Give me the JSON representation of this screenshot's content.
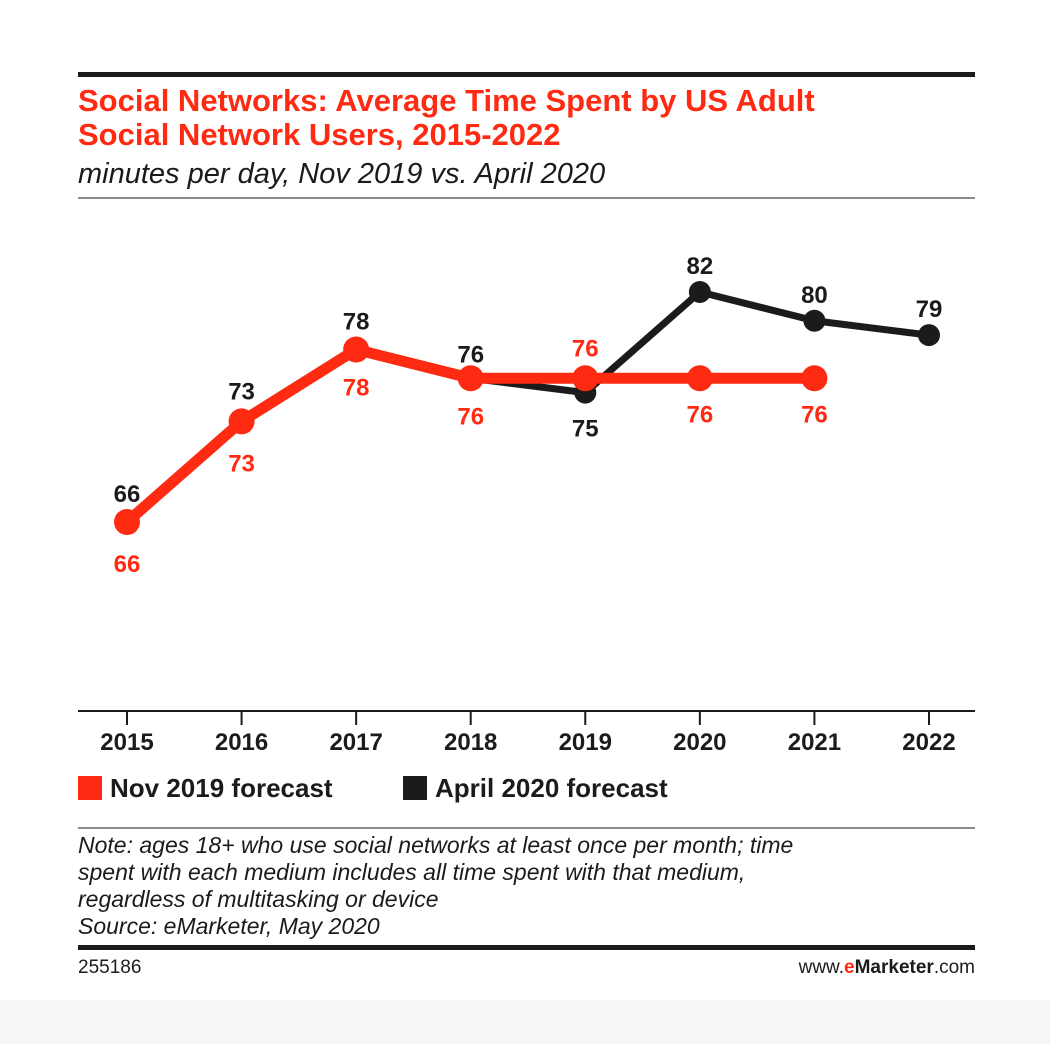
{
  "header": {
    "title_line1": "Social Networks: Average Time Spent by US Adult",
    "title_line2": "Social Network Users, 2015-2022",
    "subtitle": "minutes per day, Nov 2019 vs. April 2020"
  },
  "colors": {
    "accent": "#ff2a12",
    "dark": "#1b1b1b"
  },
  "chart_data": {
    "type": "line",
    "title": "Social Networks: Average Time Spent by US Adult Social Network Users, 2015-2022",
    "subtitle": "minutes per day, Nov 2019 vs. April 2020",
    "x": [
      "2015",
      "2016",
      "2017",
      "2018",
      "2019",
      "2020",
      "2021",
      "2022"
    ],
    "ylim": [
      55,
      85
    ],
    "grid": false,
    "legend_position": "bottom-left",
    "series": [
      {
        "name": "April 2020 forecast",
        "color": "#1b1b1b",
        "values": [
          66,
          73,
          78,
          76,
          75,
          82,
          80,
          79
        ]
      },
      {
        "name": "Nov 2019 forecast",
        "color": "#ff2a12",
        "values": [
          66,
          73,
          78,
          76,
          76,
          76,
          76,
          null
        ]
      }
    ]
  },
  "legend": {
    "items": [
      {
        "label": "Nov 2019 forecast",
        "color": "#ff2a12"
      },
      {
        "label": "April 2020 forecast",
        "color": "#1b1b1b"
      }
    ]
  },
  "note": {
    "line1": "Note: ages 18+ who use social networks at least once per month; time",
    "line2": "spent with each medium includes all time spent with that medium,",
    "line3": "regardless of multitasking or device",
    "source": "Source: eMarketer, May 2020"
  },
  "footer": {
    "chart_id": "255186",
    "brand_prefix": "www.",
    "brand_e": "e",
    "brand_name": "Marketer",
    "brand_suffix": ".com"
  }
}
